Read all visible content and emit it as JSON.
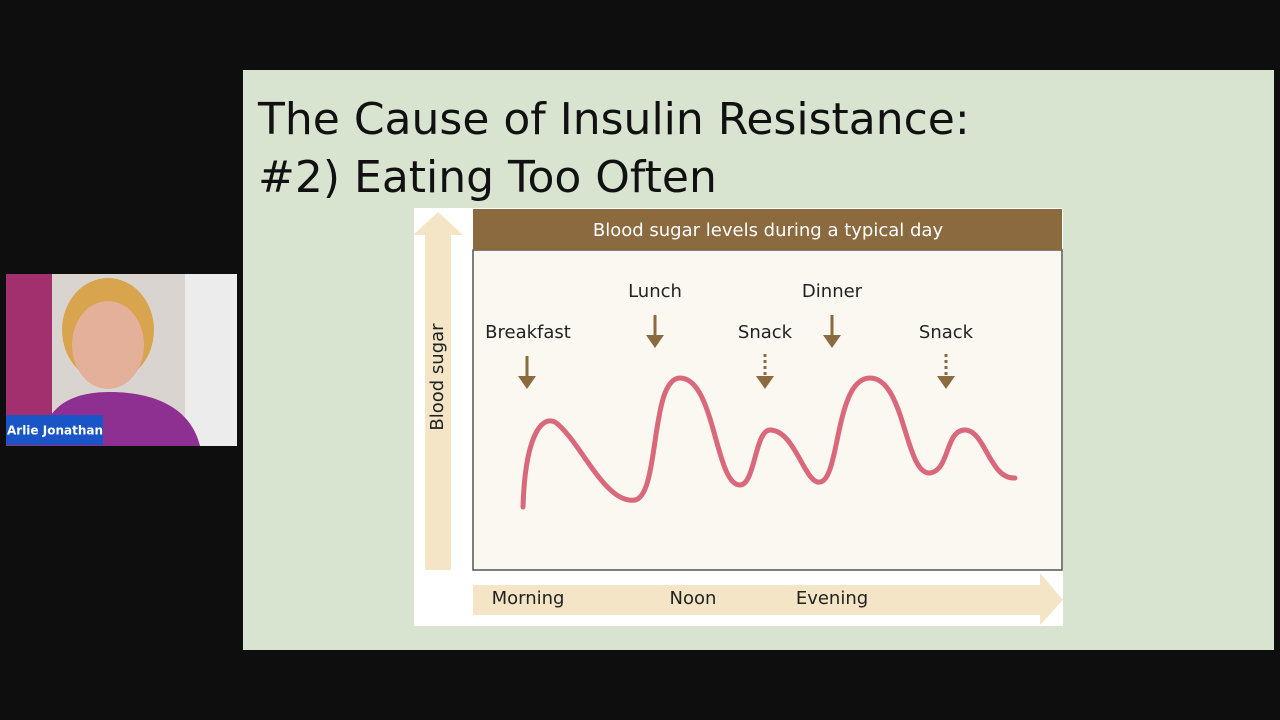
{
  "slide": {
    "title_lines": [
      "The Cause of Insulin Resistance:",
      "#2) Eating Too Often"
    ]
  },
  "diagram": {
    "header": "Blood sugar levels during a typical day",
    "y_axis_label": "Blood sugar",
    "meals": [
      "Breakfast",
      "Lunch",
      "Snack",
      "Dinner",
      "Snack"
    ],
    "times": [
      "Morning",
      "Noon",
      "Evening"
    ]
  },
  "participant": {
    "name": "Arlie Jonathan"
  }
}
